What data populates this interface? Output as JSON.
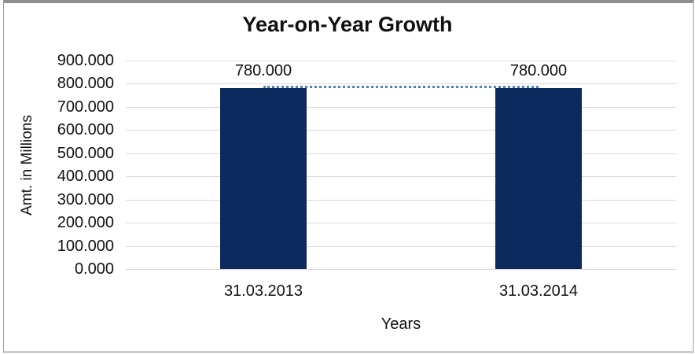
{
  "chart_data": {
    "type": "bar",
    "title": "Year-on-Year Growth",
    "xlabel": "Years",
    "ylabel": "Amt. in Millions",
    "categories": [
      "31.03.2013",
      "31.03.2014"
    ],
    "series": [
      {
        "name": "Amt. in Millions",
        "values": [
          780,
          780
        ]
      }
    ],
    "data_labels": [
      "780.000",
      "780.000"
    ],
    "ylim": [
      0,
      900
    ],
    "ytick_step": 100,
    "yticks": [
      {
        "value": 0,
        "label": "0.000"
      },
      {
        "value": 100,
        "label": "100.000"
      },
      {
        "value": 200,
        "label": "200.000"
      },
      {
        "value": 300,
        "label": "300.000"
      },
      {
        "value": 400,
        "label": "400.000"
      },
      {
        "value": 500,
        "label": "500.000"
      },
      {
        "value": 600,
        "label": "600.000"
      },
      {
        "value": 700,
        "label": "700.000"
      },
      {
        "value": 800,
        "label": "800.000"
      },
      {
        "value": 900,
        "label": "900.000"
      }
    ],
    "grid": true,
    "legend": "none",
    "colors": {
      "bar": "#0d2a5e",
      "trendline": "#4f81bd",
      "gridline": "#d9d9d9",
      "text": "#111111",
      "frame": "#8f8f8f"
    },
    "trendline": {
      "style": "dotted",
      "value": 780
    }
  }
}
